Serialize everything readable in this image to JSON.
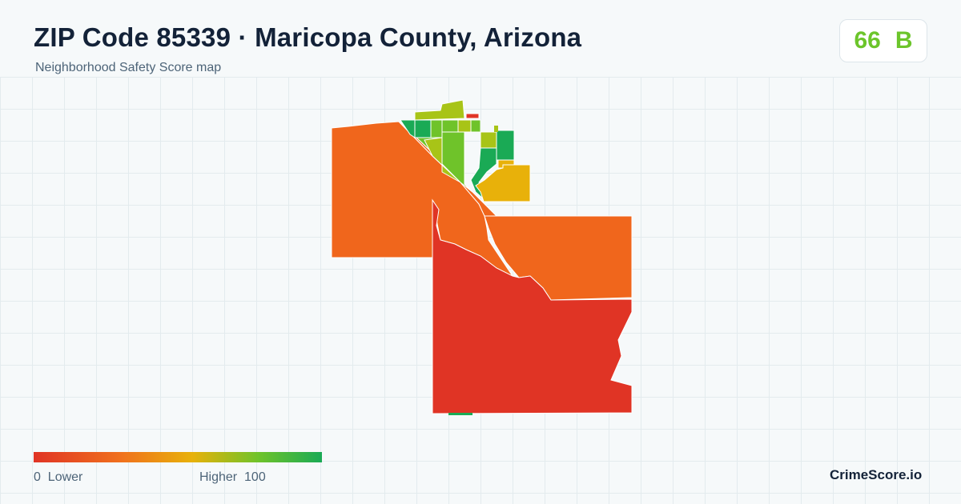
{
  "header": {
    "title": "ZIP Code 85339 · Maricopa County, Arizona",
    "subtitle": "Neighborhood Safety Score map"
  },
  "score": {
    "value": "66",
    "grade": "B",
    "color": "#6cc52b"
  },
  "legend": {
    "min": "0",
    "min_label": "Lower",
    "max_label": "Higher",
    "max": "100",
    "colors": [
      "#e03425",
      "#f0701d",
      "#e8b10a",
      "#6fc32a",
      "#1aaa55"
    ]
  },
  "brand": "CrimeScore.io",
  "map": {
    "region_colors": {
      "lowest": "#e03425",
      "low": "#f0661c",
      "mid": "#e8b10a",
      "mid_high": "#a8c417",
      "high": "#6fc32a",
      "highest": "#1aaa55"
    }
  }
}
